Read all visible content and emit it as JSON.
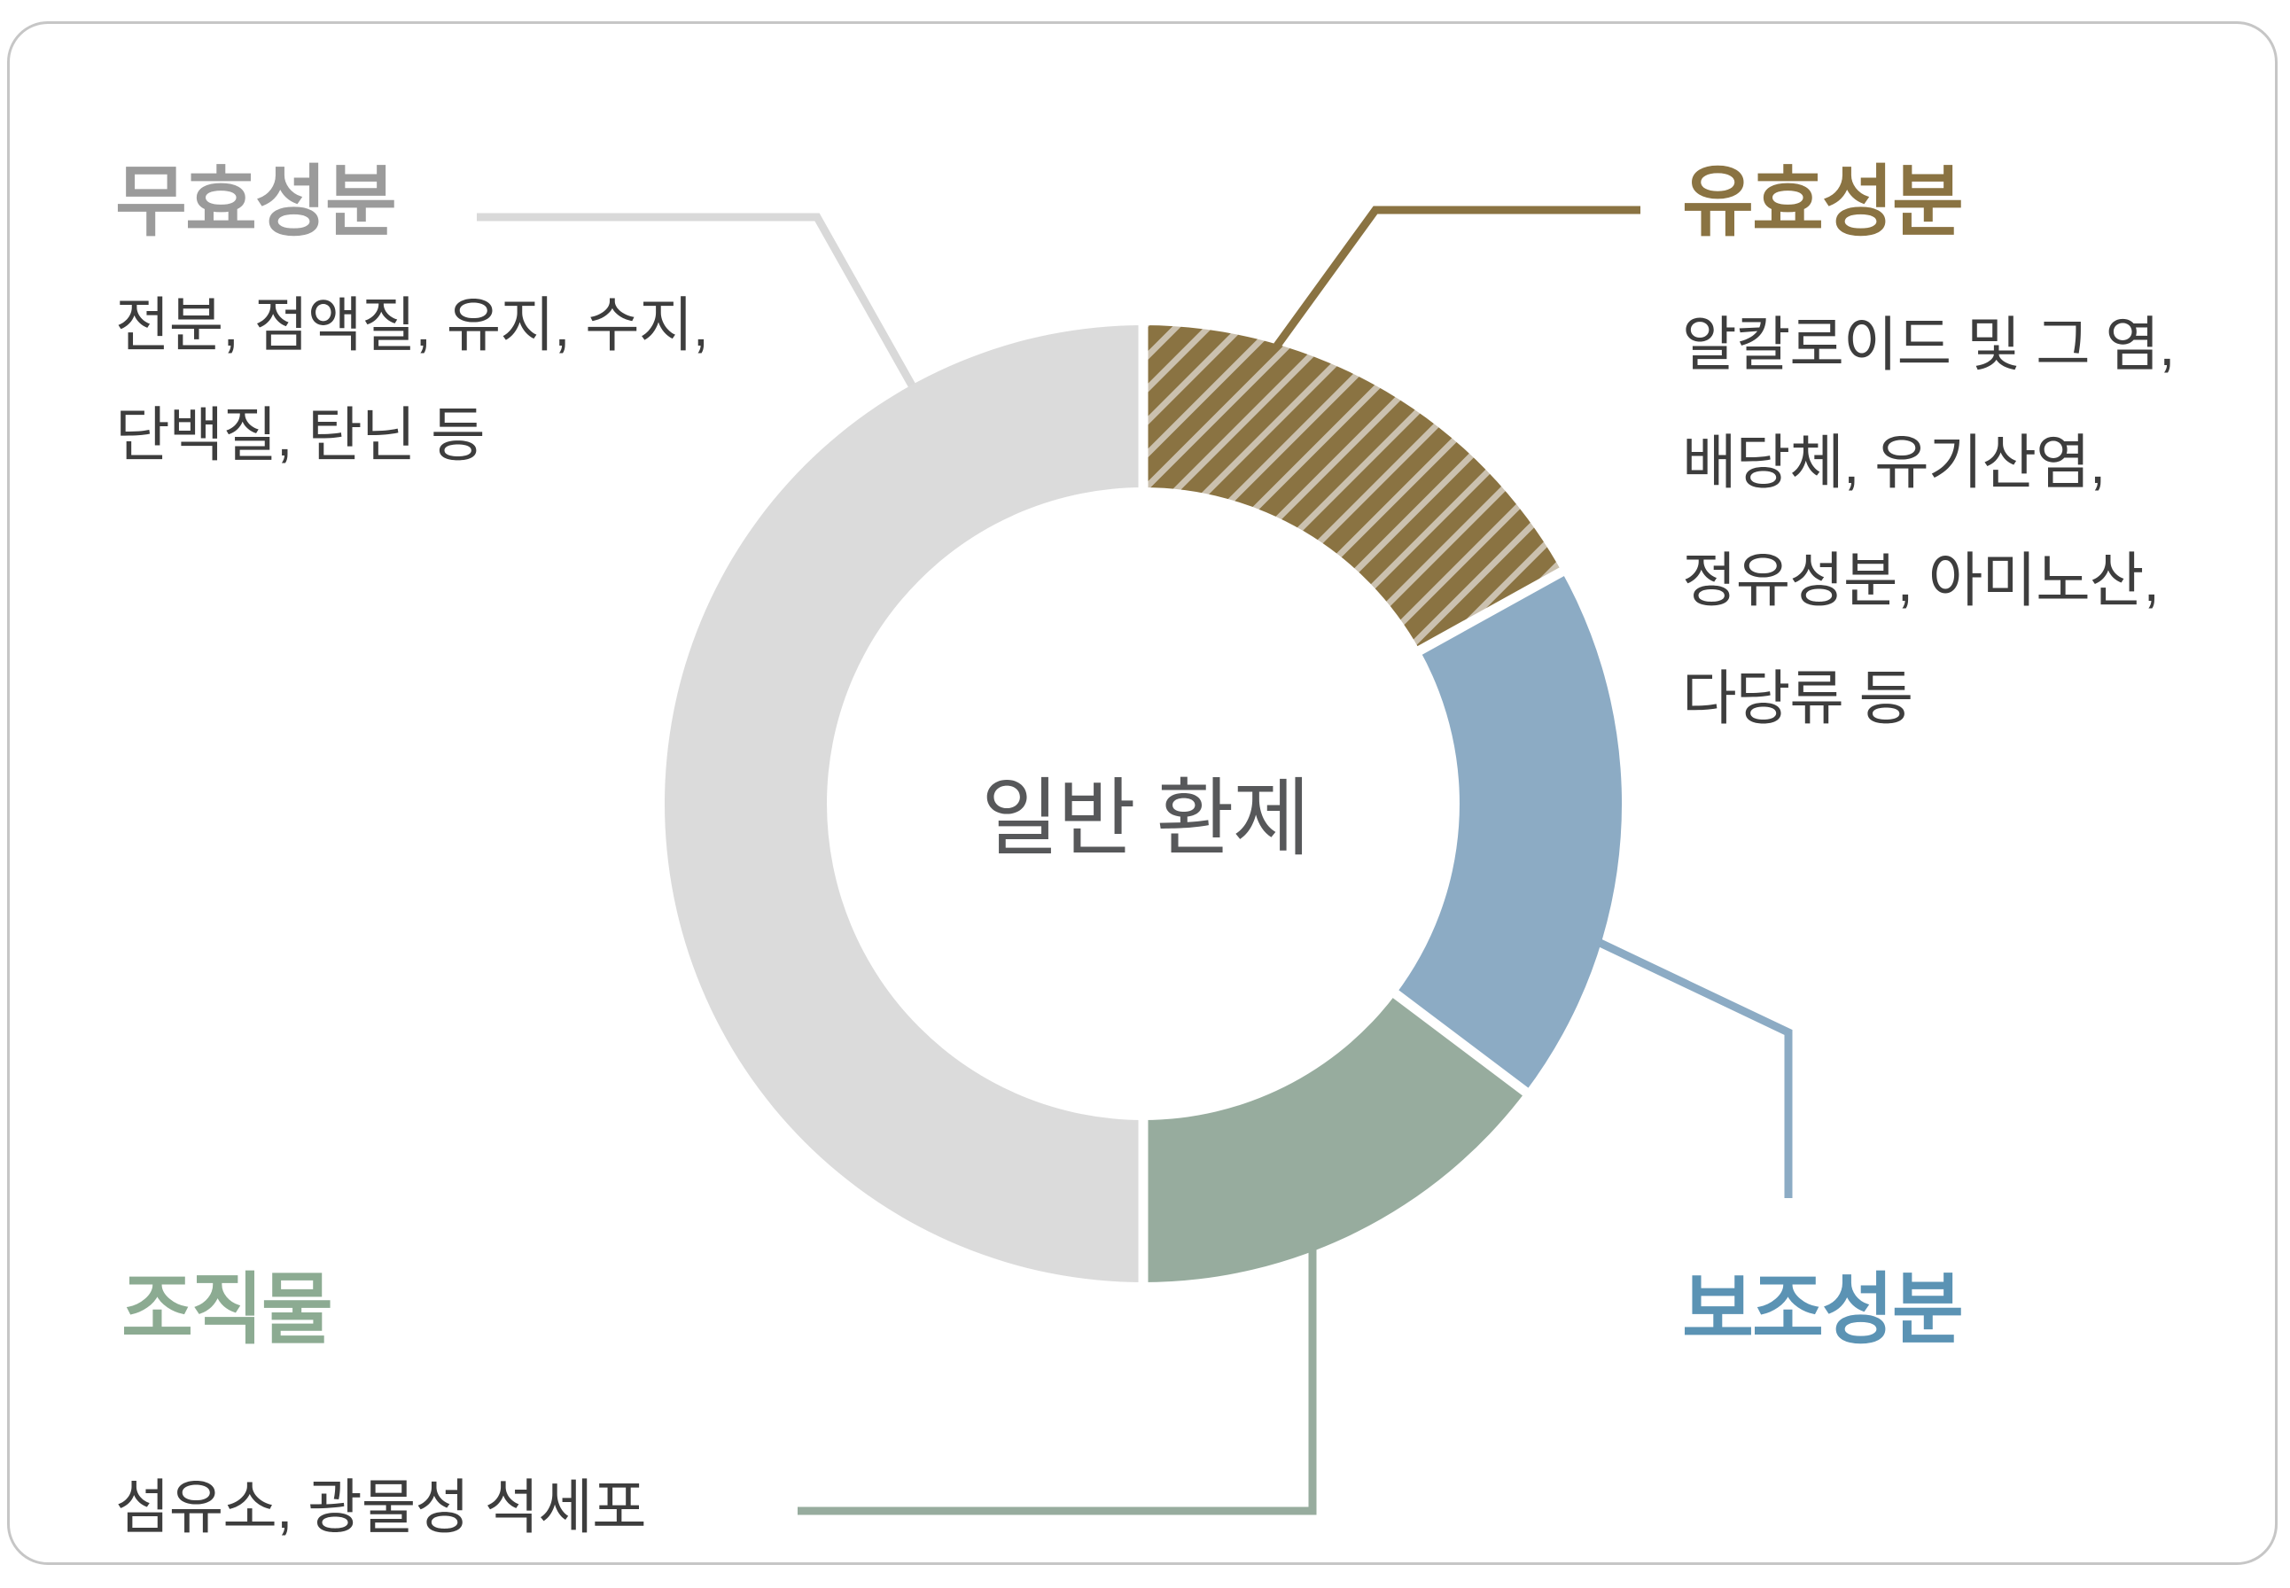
{
  "background_color": "#FFFFFF",
  "card": {
    "border_color": "#C6C6C6"
  },
  "chart_data": {
    "type": "donut",
    "title": "",
    "center_label": "일반 환제",
    "legend_position": "callouts-around-chart",
    "grid": false,
    "segments": [
      {
        "key": "active",
        "label": "유효성분",
        "pct": 17,
        "start_deg": 0,
        "end_deg": 61,
        "color": "#8A7342",
        "hatch": true,
        "hatch_color": "#CBC1AF"
      },
      {
        "key": "auxiliary",
        "label": "보조성분",
        "pct": 18,
        "start_deg": 61,
        "end_deg": 127,
        "color": "#8CABC4",
        "hatch": false
      },
      {
        "key": "tissue",
        "label": "조직물",
        "pct": 15,
        "start_deg": 127,
        "end_deg": 180,
        "color": "#97AC9E",
        "hatch": false
      },
      {
        "key": "inactive",
        "label": "무효성분",
        "pct": 50,
        "start_deg": 180,
        "end_deg": 360,
        "color": "#DBDBDB",
        "hatch": false
      }
    ]
  },
  "callouts": {
    "inactive": {
      "title": "무효성분",
      "title_color": "#9B9B9B",
      "line_color": "#D9D9D9",
      "desc_lines": [
        "전분, 점액질, 유지, 수지,",
        "단백질, 탄닌 등"
      ]
    },
    "active": {
      "title": "유효성분",
      "title_color": "#8A7342",
      "line_color": "#8A7342",
      "desc_lines": [
        "알칼로이드 및 그 염,",
        "배당체, 유기산염,",
        "정유성분, 아미노산,",
        "다당류 등"
      ]
    },
    "auxiliary": {
      "title": "보조성분",
      "title_color": "#5B93B4",
      "line_color": "#8CABC4",
      "desc_lines": []
    },
    "tissue": {
      "title": "조직물",
      "title_color": "#8CAB92",
      "line_color": "#97AC9E",
      "desc_lines": [
        "섬유소, 광물성 석세포"
      ]
    }
  },
  "center_text_color": "#57585A",
  "desc_text_color": "#3D3D3D"
}
